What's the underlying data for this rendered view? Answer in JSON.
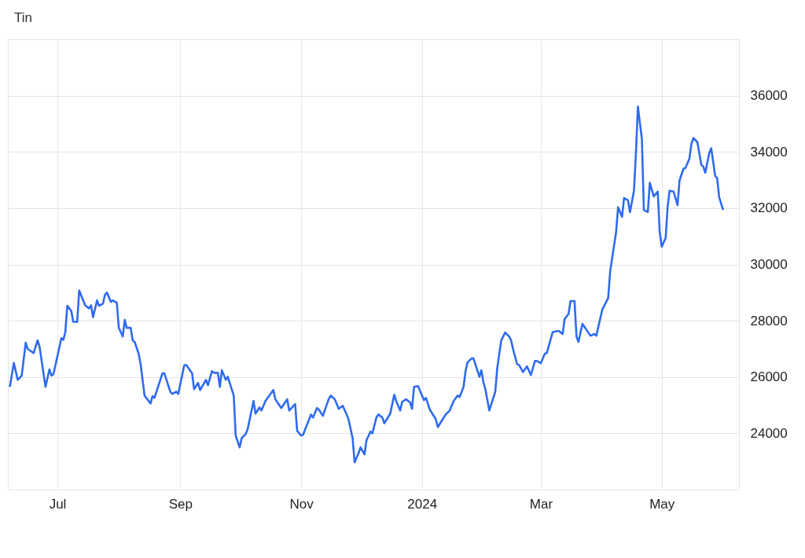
{
  "chart_data": {
    "type": "line",
    "title": "Tin",
    "x": [
      "2023-06-07",
      "2023-06-09",
      "2023-06-11",
      "2023-06-13",
      "2023-06-15",
      "2023-06-16",
      "2023-06-19",
      "2023-06-21",
      "2023-06-22",
      "2023-06-25",
      "2023-06-27",
      "2023-06-28",
      "2023-06-29",
      "2023-07-03",
      "2023-07-04",
      "2023-07-05",
      "2023-07-06",
      "2023-07-08",
      "2023-07-09",
      "2023-07-11",
      "2023-07-12",
      "2023-07-15",
      "2023-07-17",
      "2023-07-18",
      "2023-07-19",
      "2023-07-21",
      "2023-07-22",
      "2023-07-24",
      "2023-07-25",
      "2023-07-26",
      "2023-07-28",
      "2023-07-29",
      "2023-07-31",
      "2023-08-01",
      "2023-08-03",
      "2023-08-04",
      "2023-08-05",
      "2023-08-07",
      "2023-08-08",
      "2023-08-09",
      "2023-08-11",
      "2023-08-12",
      "2023-08-14",
      "2023-08-17",
      "2023-08-18",
      "2023-08-19",
      "2023-08-23",
      "2023-08-24",
      "2023-08-27",
      "2023-08-28",
      "2023-08-30",
      "2023-08-31",
      "2023-09-03",
      "2023-09-04",
      "2023-09-07",
      "2023-09-08",
      "2023-09-10",
      "2023-09-11",
      "2023-09-14",
      "2023-09-15",
      "2023-09-17",
      "2023-09-18",
      "2023-09-20",
      "2023-09-21",
      "2023-09-22",
      "2023-09-24",
      "2023-09-25",
      "2023-09-28",
      "2023-09-29",
      "2023-10-01",
      "2023-10-02",
      "2023-10-04",
      "2023-10-05",
      "2023-10-08",
      "2023-10-09",
      "2023-10-11",
      "2023-10-12",
      "2023-10-14",
      "2023-10-18",
      "2023-10-19",
      "2023-10-22",
      "2023-10-25",
      "2023-10-26",
      "2023-10-29",
      "2023-10-30",
      "2023-11-01",
      "2023-11-02",
      "2023-11-06",
      "2023-11-07",
      "2023-11-09",
      "2023-11-10",
      "2023-11-12",
      "2023-11-15",
      "2023-11-16",
      "2023-11-18",
      "2023-11-20",
      "2023-11-22",
      "2023-11-24",
      "2023-11-25",
      "2023-11-27",
      "2023-11-28",
      "2023-11-30",
      "2023-12-01",
      "2023-12-03",
      "2023-12-04",
      "2023-12-06",
      "2023-12-07",
      "2023-12-09",
      "2023-12-10",
      "2023-12-12",
      "2023-12-13",
      "2023-12-16",
      "2023-12-18",
      "2023-12-19",
      "2023-12-21",
      "2023-12-22",
      "2023-12-24",
      "2023-12-26",
      "2023-12-27",
      "2023-12-28",
      "2023-12-30",
      "2024-01-02",
      "2024-01-03",
      "2024-01-05",
      "2024-01-08",
      "2024-01-09",
      "2024-01-11",
      "2024-01-13",
      "2024-01-15",
      "2024-01-17",
      "2024-01-19",
      "2024-01-20",
      "2024-01-22",
      "2024-01-23",
      "2024-01-24",
      "2024-01-26",
      "2024-01-27",
      "2024-01-30",
      "2024-01-31",
      "2024-02-01",
      "2024-02-02",
      "2024-02-04",
      "2024-02-07",
      "2024-02-08",
      "2024-02-10",
      "2024-02-12",
      "2024-02-14",
      "2024-02-15",
      "2024-02-16",
      "2024-02-18",
      "2024-02-19",
      "2024-02-21",
      "2024-02-23",
      "2024-02-25",
      "2024-02-27",
      "2024-02-28",
      "2024-03-01",
      "2024-03-03",
      "2024-03-04",
      "2024-03-07",
      "2024-03-10",
      "2024-03-12",
      "2024-03-13",
      "2024-03-15",
      "2024-03-16",
      "2024-03-18",
      "2024-03-19",
      "2024-03-20",
      "2024-03-22",
      "2024-03-26",
      "2024-03-28",
      "2024-03-29",
      "2024-04-01",
      "2024-04-03",
      "2024-04-04",
      "2024-04-05",
      "2024-04-08",
      "2024-04-09",
      "2024-04-11",
      "2024-04-12",
      "2024-04-14",
      "2024-04-15",
      "2024-04-17",
      "2024-04-18",
      "2024-04-19",
      "2024-04-21",
      "2024-04-22",
      "2024-04-24",
      "2024-04-25",
      "2024-04-27",
      "2024-04-29",
      "2024-04-30",
      "2024-05-01",
      "2024-05-03",
      "2024-05-04",
      "2024-05-05",
      "2024-05-07",
      "2024-05-09",
      "2024-05-10",
      "2024-05-12",
      "2024-05-13",
      "2024-05-15",
      "2024-05-16",
      "2024-05-17",
      "2024-05-19",
      "2024-05-21",
      "2024-05-22",
      "2024-05-23",
      "2024-05-25",
      "2024-05-26",
      "2024-05-28",
      "2024-05-29",
      "2024-05-30",
      "2024-06-01"
    ],
    "series": [
      {
        "color": "#2f6bef",
        "values": [
          25650,
          26500,
          25900,
          26050,
          27220,
          27000,
          26850,
          27300,
          27080,
          25650,
          26270,
          26050,
          26100,
          27380,
          27320,
          27600,
          28530,
          28350,
          27960,
          27960,
          29080,
          28550,
          28440,
          28550,
          28130,
          28720,
          28530,
          28610,
          28920,
          29000,
          28670,
          28720,
          28640,
          27750,
          27440,
          28030,
          27750,
          27750,
          27300,
          27250,
          26830,
          26460,
          25340,
          25060,
          25320,
          25260,
          26130,
          26130,
          25480,
          25400,
          25480,
          25400,
          26410,
          26430,
          26130,
          25570,
          25790,
          25540,
          25900,
          25710,
          26210,
          26150,
          26150,
          25650,
          26240,
          25900,
          26010,
          25340,
          23920,
          23500,
          23830,
          23970,
          24140,
          25150,
          24700,
          24920,
          24810,
          25150,
          25540,
          25210,
          24900,
          25210,
          24810,
          25040,
          24090,
          23920,
          23950,
          24670,
          24560,
          24900,
          24840,
          24620,
          25230,
          25340,
          25210,
          24870,
          24980,
          24670,
          24480,
          23830,
          22970,
          23300,
          23500,
          23250,
          23750,
          24060,
          24000,
          24560,
          24670,
          24560,
          24360,
          24700,
          25370,
          25150,
          24810,
          25120,
          25210,
          25100,
          24870,
          25650,
          25680,
          25180,
          25260,
          24840,
          24500,
          24220,
          24450,
          24670,
          24810,
          25150,
          25340,
          25290,
          25650,
          26210,
          26520,
          26660,
          26660,
          26010,
          26240,
          25820,
          25570,
          24810,
          25480,
          26320,
          27300,
          27580,
          27440,
          27300,
          26990,
          26460,
          26430,
          26180,
          26380,
          26070,
          26570,
          26570,
          26490,
          26830,
          26850,
          27600,
          27640,
          27530,
          28060,
          28250,
          28700,
          28700,
          27440,
          27250,
          27890,
          27470,
          27530,
          27470,
          28390,
          28670,
          28810,
          29760,
          31160,
          32030,
          31690,
          32360,
          32280,
          31860,
          32620,
          33960,
          35610,
          34460,
          31940,
          31860,
          32900,
          32420,
          32590,
          31160,
          30630,
          30940,
          32060,
          32620,
          32590,
          32110,
          32980,
          33400,
          33430,
          33760,
          34290,
          34490,
          34350,
          33540,
          33480,
          33260,
          33960,
          34130,
          33150,
          33060,
          32390,
          31940
        ]
      }
    ],
    "xlim": [
      "2023-06-06",
      "2024-06-09"
    ],
    "xticks": [
      {
        "value": "2023-07-01",
        "label": "Jul"
      },
      {
        "value": "2023-09-01",
        "label": "Sep"
      },
      {
        "value": "2023-11-01",
        "label": "Nov"
      },
      {
        "value": "2024-01-01",
        "label": "2024"
      },
      {
        "value": "2024-03-01",
        "label": "Mar"
      },
      {
        "value": "2024-05-01",
        "label": "May"
      }
    ],
    "ylim": [
      22000,
      38000
    ],
    "yticks": [
      24000,
      26000,
      28000,
      30000,
      32000,
      34000,
      36000
    ],
    "grid": true
  }
}
